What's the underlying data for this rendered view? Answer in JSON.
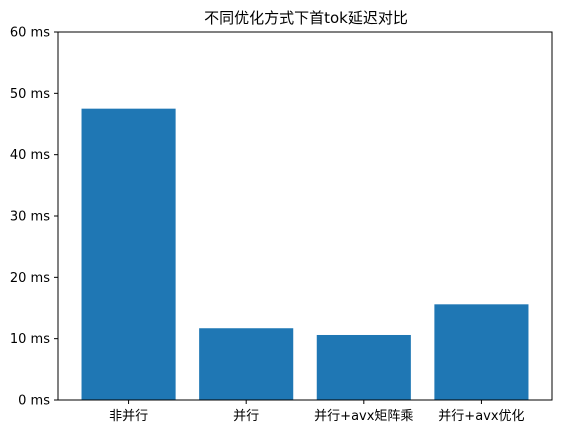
{
  "chart_data": {
    "type": "bar",
    "title": "不同优化方式下首tok延迟对比",
    "xlabel": "",
    "ylabel": "",
    "categories": [
      "非并行",
      "并行",
      "并行+avx矩阵乘",
      "并行+avx优化"
    ],
    "values": [
      47.5,
      11.7,
      10.6,
      15.6
    ],
    "ylim": [
      0,
      60
    ],
    "yticks": [
      0,
      10,
      20,
      30,
      40,
      50,
      60
    ],
    "ytick_labels": [
      "0 ms",
      "10 ms",
      "20 ms",
      "30 ms",
      "40 ms",
      "50 ms",
      "60 ms"
    ],
    "grid": false,
    "bar_color": "#1f77b4"
  }
}
